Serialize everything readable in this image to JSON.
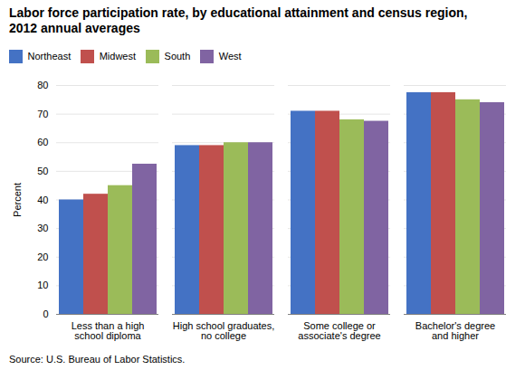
{
  "chart_data": {
    "type": "bar",
    "title": "Labor force participation rate, by educational attainment and census region,\n2012 annual averages",
    "ylabel": "Percent",
    "caption": "Source: U.S. Bureau of Labor Statistics.",
    "categories": [
      "Less than a high\nschool diploma",
      "High school graduates,\nno college",
      "Some college or\nassociate's degree",
      "Bachelor's degree\nand higher"
    ],
    "series": [
      {
        "name": "Northeast",
        "color": "#4472C4",
        "values": [
          40.0,
          59.0,
          71.0,
          77.5
        ]
      },
      {
        "name": "Midwest",
        "color": "#C0504D",
        "values": [
          42.0,
          59.0,
          71.0,
          77.5
        ]
      },
      {
        "name": "South",
        "color": "#9BBB59",
        "values": [
          45.0,
          60.0,
          68.0,
          75.0
        ]
      },
      {
        "name": "West",
        "color": "#8064A2",
        "values": [
          52.5,
          60.0,
          67.5,
          74.0
        ]
      }
    ],
    "ylim": [
      0,
      80
    ],
    "yticks": [
      0,
      10,
      20,
      30,
      40,
      50,
      60,
      70,
      80
    ],
    "grid": true,
    "legend": "upper left"
  }
}
